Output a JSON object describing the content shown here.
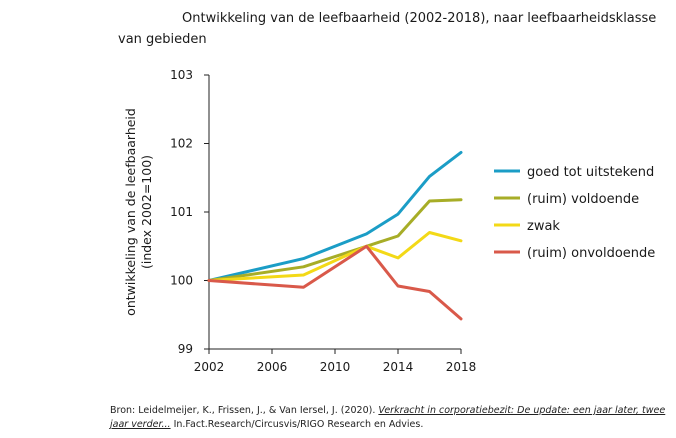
{
  "chart_data": {
    "type": "line",
    "title_line1": "Ontwikkeling van de leefbaarheid (2002-2018), naar leefbaarheidsklasse",
    "title_line2": "van gebieden",
    "ylabel_line1": "ontwikkeling van de leefbaarheid",
    "ylabel_line2": "(index 2002=100)",
    "xlabel": "",
    "x": [
      2002,
      2008,
      2012,
      2014,
      2016,
      2018
    ],
    "xticks": [
      "2002",
      "2006",
      "2010",
      "2014",
      "2018"
    ],
    "xtick_values": [
      2002,
      2006,
      2010,
      2014,
      2018
    ],
    "xlim": [
      2002,
      2018
    ],
    "yticks": [
      "99",
      "100",
      "101",
      "102",
      "103"
    ],
    "ytick_values": [
      99,
      100,
      101,
      102,
      103
    ],
    "ylim": [
      99,
      103
    ],
    "grid": false,
    "legend_position": "right",
    "series": [
      {
        "name": "goed tot uitstekend",
        "color": "#1b9dc6",
        "values": [
          100,
          100.32,
          100.68,
          100.97,
          101.52,
          101.87
        ]
      },
      {
        "name": "(ruim) voldoende",
        "color": "#a7ad27",
        "values": [
          100,
          100.2,
          100.5,
          100.65,
          101.16,
          101.18
        ]
      },
      {
        "name": "zwak",
        "color": "#f3d917",
        "values": [
          100,
          100.08,
          100.5,
          100.33,
          100.7,
          100.58
        ]
      },
      {
        "name": "(ruim) onvoldoende",
        "color": "#d9594a",
        "values": [
          100,
          99.9,
          100.5,
          99.92,
          99.84,
          99.44
        ]
      }
    ]
  },
  "source": {
    "prefix": "Bron: Leidelmeijer, K., Frissen, J., & Van Iersel, J. (2020). ",
    "link_text": "Verkracht in corporatiebezit: De update: een jaar later, twee jaar verder...",
    "suffix": " In.Fact.Research/Circusvis/RIGO Research en Advies."
  }
}
